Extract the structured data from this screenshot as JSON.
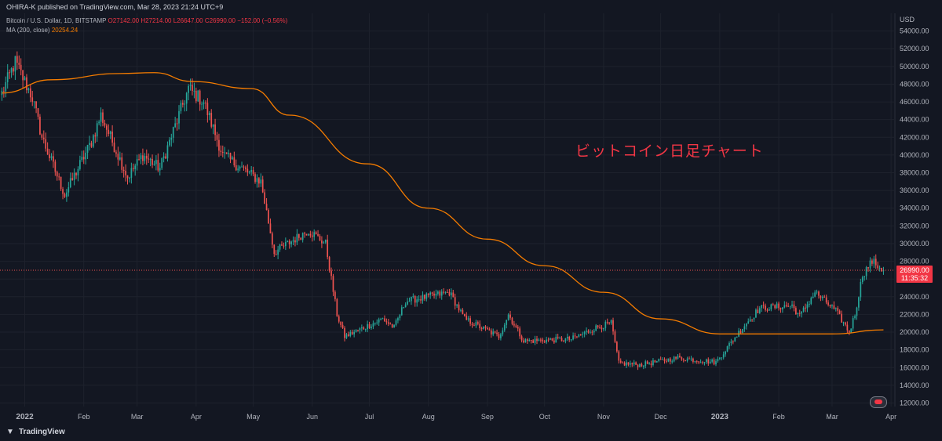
{
  "header": {
    "published": "OHIRA-K published on TradingView.com, Mar 28, 2023 21:24 UTC+9"
  },
  "legend": {
    "symbol": "Bitcoin / U.S. Dollar, 1D, BITSTAMP",
    "open": "O27142.00",
    "high": "H27214.00",
    "low": "L26647.00",
    "close": "C26990.00",
    "change": "−152.00 (−0.56%)",
    "ma_label": "MA (200, close)",
    "ma_value": "20254.24"
  },
  "annotation": "ビットコイン日足チャート",
  "price_tag": {
    "price": "26990.00",
    "countdown": "11:35:32"
  },
  "footer": {
    "logo_text": "TradingView"
  },
  "colors": {
    "background": "#131722",
    "up": "#26a69a",
    "down": "#ef5350",
    "ma": "#f57c00",
    "grid": "#1e222d",
    "axis_text": "#b2b5be"
  },
  "chart_data": {
    "type": "candlestick",
    "title": "",
    "x_axis": {
      "ticks": [
        "2022",
        "Feb",
        "Mar",
        "Apr",
        "May",
        "Jun",
        "Jul",
        "Aug",
        "Sep",
        "Oct",
        "Nov",
        "Dec",
        "2023",
        "Feb",
        "Mar",
        "Apr"
      ],
      "range": [
        "2021-12-19",
        "2023-04-03"
      ]
    },
    "y_axis": {
      "unit": "USD",
      "ticks": [
        12000,
        14000,
        16000,
        18000,
        20000,
        22000,
        24000,
        26000,
        28000,
        30000,
        32000,
        34000,
        36000,
        38000,
        40000,
        42000,
        44000,
        46000,
        48000,
        50000,
        52000,
        54000
      ],
      "range": [
        11600,
        56000
      ]
    },
    "last_price": 26990,
    "anchors": [
      {
        "date": "2021-12-20",
        "price": 47000
      },
      {
        "date": "2021-12-27",
        "price": 50500
      },
      {
        "date": "2022-01-05",
        "price": 46500
      },
      {
        "date": "2022-01-10",
        "price": 42000
      },
      {
        "date": "2022-01-22",
        "price": 35500
      },
      {
        "date": "2022-02-05",
        "price": 41500
      },
      {
        "date": "2022-02-10",
        "price": 44500
      },
      {
        "date": "2022-02-24",
        "price": 37500
      },
      {
        "date": "2022-03-04",
        "price": 40000
      },
      {
        "date": "2022-03-13",
        "price": 38500
      },
      {
        "date": "2022-03-28",
        "price": 47500
      },
      {
        "date": "2022-04-05",
        "price": 46000
      },
      {
        "date": "2022-04-15",
        "price": 40000
      },
      {
        "date": "2022-05-05",
        "price": 37000
      },
      {
        "date": "2022-05-12",
        "price": 29000
      },
      {
        "date": "2022-05-30",
        "price": 31500
      },
      {
        "date": "2022-06-08",
        "price": 30000
      },
      {
        "date": "2022-06-14",
        "price": 22000
      },
      {
        "date": "2022-06-18",
        "price": 19500
      },
      {
        "date": "2022-07-08",
        "price": 21500
      },
      {
        "date": "2022-07-14",
        "price": 20500
      },
      {
        "date": "2022-07-20",
        "price": 23500
      },
      {
        "date": "2022-08-12",
        "price": 24500
      },
      {
        "date": "2022-08-20",
        "price": 21500
      },
      {
        "date": "2022-09-07",
        "price": 19500
      },
      {
        "date": "2022-09-12",
        "price": 22000
      },
      {
        "date": "2022-09-20",
        "price": 19000
      },
      {
        "date": "2022-10-15",
        "price": 19200
      },
      {
        "date": "2022-10-28",
        "price": 20500
      },
      {
        "date": "2022-11-05",
        "price": 21000
      },
      {
        "date": "2022-11-09",
        "price": 16500
      },
      {
        "date": "2022-11-20",
        "price": 16300
      },
      {
        "date": "2022-12-10",
        "price": 17100
      },
      {
        "date": "2022-12-30",
        "price": 16600
      },
      {
        "date": "2023-01-14",
        "price": 20800
      },
      {
        "date": "2023-01-22",
        "price": 22700
      },
      {
        "date": "2023-02-08",
        "price": 23000
      },
      {
        "date": "2023-02-12",
        "price": 21800
      },
      {
        "date": "2023-02-20",
        "price": 24500
      },
      {
        "date": "2023-03-03",
        "price": 22400
      },
      {
        "date": "2023-03-10",
        "price": 20000
      },
      {
        "date": "2023-03-13",
        "price": 22000
      },
      {
        "date": "2023-03-17",
        "price": 26500
      },
      {
        "date": "2023-03-22",
        "price": 28000
      },
      {
        "date": "2023-03-28",
        "price": 26990
      }
    ],
    "ma_200": [
      {
        "date": "2021-12-20",
        "price": 47000
      },
      {
        "date": "2022-01-15",
        "price": 48500
      },
      {
        "date": "2022-02-20",
        "price": 49200
      },
      {
        "date": "2022-03-10",
        "price": 49300
      },
      {
        "date": "2022-03-30",
        "price": 48300
      },
      {
        "date": "2022-04-30",
        "price": 47500
      },
      {
        "date": "2022-05-20",
        "price": 44500
      },
      {
        "date": "2022-06-30",
        "price": 39000
      },
      {
        "date": "2022-08-01",
        "price": 34000
      },
      {
        "date": "2022-09-01",
        "price": 30500
      },
      {
        "date": "2022-10-01",
        "price": 27500
      },
      {
        "date": "2022-11-01",
        "price": 24500
      },
      {
        "date": "2022-12-01",
        "price": 21500
      },
      {
        "date": "2023-01-01",
        "price": 19800
      },
      {
        "date": "2023-02-01",
        "price": 19800
      },
      {
        "date": "2023-03-01",
        "price": 19800
      },
      {
        "date": "2023-03-28",
        "price": 20254
      }
    ]
  }
}
